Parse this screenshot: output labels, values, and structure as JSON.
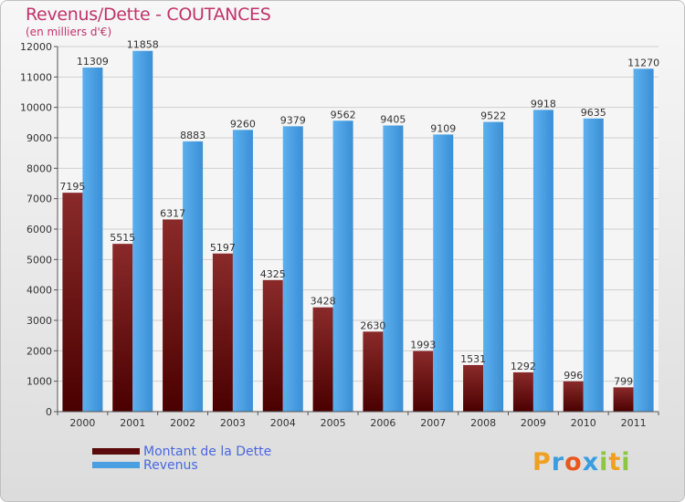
{
  "title": "Revenus/Dette - COUTANCES",
  "subtitle": "(en milliers d'€)",
  "chart_data": {
    "type": "bar",
    "categories": [
      "2000",
      "2001",
      "2002",
      "2003",
      "2004",
      "2005",
      "2006",
      "2007",
      "2008",
      "2009",
      "2010",
      "2011"
    ],
    "series": [
      {
        "name": "Montant de la Dette",
        "color": "#7a1a1a",
        "values": [
          7195,
          5515,
          6317,
          5197,
          4325,
          3428,
          2630,
          1993,
          1531,
          1292,
          996,
          799
        ],
        "labels": [
          "7195",
          "5515",
          "6317",
          "5197",
          "4325",
          "3428",
          "2630",
          "1993",
          "1531",
          "1292",
          "996",
          "799"
        ]
      },
      {
        "name": "Revenus",
        "color": "#4a9fe0",
        "values": [
          11309,
          11858,
          8883,
          9260,
          9379,
          9562,
          9405,
          9109,
          9522,
          9918,
          9635,
          11270
        ],
        "labels": [
          "11309",
          "11858",
          "8883",
          "9260",
          "9379",
          "9562",
          "9405",
          "9109",
          "9522",
          "9918",
          "9635",
          "11270"
        ]
      }
    ],
    "ylim": [
      0,
      12000
    ],
    "yticks": [
      "0",
      "1000",
      "2000",
      "3000",
      "4000",
      "5000",
      "6000",
      "7000",
      "8000",
      "9000",
      "10000",
      "11000",
      "12000"
    ],
    "grid": true,
    "legend_position": "bottom-left"
  },
  "legend": {
    "items": [
      {
        "label": "Montant de la Dette",
        "color": "#5a0a0a"
      },
      {
        "label": "Revenus",
        "color": "#4a9fe0"
      }
    ]
  },
  "logo": {
    "letters": [
      "P",
      "r",
      "o",
      "x",
      "i",
      "t",
      "i"
    ],
    "colors": [
      "#f0a020",
      "#3a9de0",
      "#e9571d",
      "#3a9de0",
      "#8dc63f",
      "#f0a020",
      "#8dc63f"
    ]
  }
}
